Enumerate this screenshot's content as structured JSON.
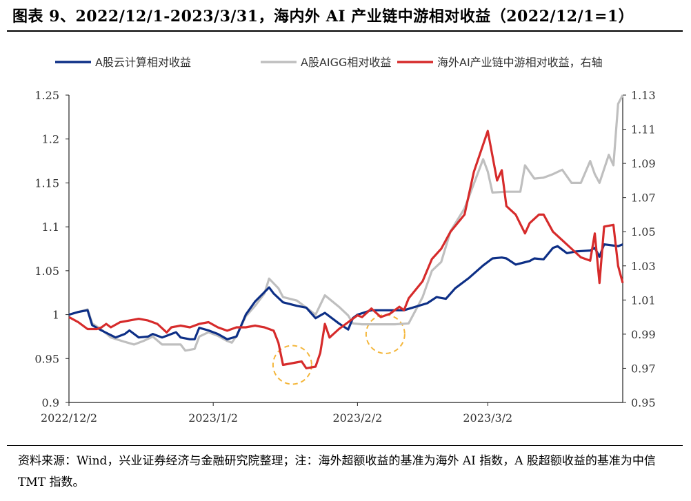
{
  "title": "图表 9、2022/12/1-2023/3/31，海内外 AI 产业链中游相对收益（2022/12/1=1）",
  "footnote": "资料来源：Wind，兴业证券经济与金融研究院整理；注：海外超额收益的基准为海外 AI 指数，A 股超额收益的基准为中信 TMT 指数。",
  "chart_data": {
    "type": "line",
    "x_tick_labels": [
      "2022/12/2",
      "2023/1/2",
      "2023/2/2",
      "2023/3/2"
    ],
    "x_ticks": [
      "2022-12-02",
      "2023-01-02",
      "2023-02-02",
      "2023-03-02"
    ],
    "x_range": [
      "2022-12-02",
      "2023-03-31"
    ],
    "left_axis": {
      "ylim": [
        0.9,
        1.25
      ],
      "ticks": [
        0.9,
        0.95,
        1,
        1.05,
        1.1,
        1.15,
        1.2,
        1.25
      ],
      "tick_labels": [
        "0.9",
        "0.95",
        "1",
        "1.05",
        "1.1",
        "1.15",
        "1.2",
        "1.25"
      ]
    },
    "right_axis": {
      "ylim": [
        0.95,
        1.13
      ],
      "ticks": [
        0.95,
        0.97,
        0.99,
        1.01,
        1.03,
        1.05,
        1.07,
        1.09,
        1.11,
        1.13
      ],
      "tick_labels": [
        "0.95",
        "0.97",
        "0.99",
        "1.01",
        "1.03",
        "1.05",
        "1.07",
        "1.09",
        "1.11",
        "1.13"
      ]
    },
    "series": [
      {
        "name": "A股云计算相对收益",
        "color": "#0d2f86",
        "axis": "left",
        "points": [
          [
            "2022-12-02",
            1.0
          ],
          [
            "2022-12-04",
            1.003
          ],
          [
            "2022-12-06",
            1.005
          ],
          [
            "2022-12-07",
            0.988
          ],
          [
            "2022-12-09",
            0.982
          ],
          [
            "2022-12-12",
            0.974
          ],
          [
            "2022-12-14",
            0.978
          ],
          [
            "2022-12-15",
            0.982
          ],
          [
            "2022-12-17",
            0.974
          ],
          [
            "2022-12-19",
            0.975
          ],
          [
            "2022-12-20",
            0.978
          ],
          [
            "2022-12-22",
            0.974
          ],
          [
            "2022-12-23",
            0.976
          ],
          [
            "2022-12-25",
            0.98
          ],
          [
            "2022-12-26",
            0.974
          ],
          [
            "2022-12-28",
            0.972
          ],
          [
            "2022-12-29",
            0.972
          ],
          [
            "2022-12-30",
            0.985
          ],
          [
            "2023-01-01",
            0.982
          ],
          [
            "2023-01-03",
            0.978
          ],
          [
            "2023-01-05",
            0.972
          ],
          [
            "2023-01-07",
            0.975
          ],
          [
            "2023-01-09",
            1.0
          ],
          [
            "2023-01-11",
            1.015
          ],
          [
            "2023-01-14",
            1.031
          ],
          [
            "2023-01-15",
            1.024
          ],
          [
            "2023-01-17",
            1.014
          ],
          [
            "2023-01-20",
            1.01
          ],
          [
            "2023-01-22",
            1.008
          ],
          [
            "2023-01-24",
            0.996
          ],
          [
            "2023-01-26",
            1.002
          ],
          [
            "2023-01-29",
            0.99
          ],
          [
            "2023-01-31",
            0.983
          ],
          [
            "2023-02-01",
            0.996
          ],
          [
            "2023-02-02",
            1.0
          ],
          [
            "2023-02-05",
            1.005
          ],
          [
            "2023-02-08",
            1.005
          ],
          [
            "2023-02-12",
            1.005
          ],
          [
            "2023-02-17",
            1.013
          ],
          [
            "2023-02-19",
            1.02
          ],
          [
            "2023-02-21",
            1.018
          ],
          [
            "2023-02-23",
            1.03
          ],
          [
            "2023-02-26",
            1.042
          ],
          [
            "2023-03-01",
            1.056
          ],
          [
            "2023-03-03",
            1.064
          ],
          [
            "2023-03-05",
            1.065
          ],
          [
            "2023-03-06",
            1.064
          ],
          [
            "2023-03-08",
            1.057
          ],
          [
            "2023-03-11",
            1.061
          ],
          [
            "2023-03-12",
            1.064
          ],
          [
            "2023-03-14",
            1.063
          ],
          [
            "2023-03-16",
            1.076
          ],
          [
            "2023-03-17",
            1.078
          ],
          [
            "2023-03-19",
            1.07
          ],
          [
            "2023-03-21",
            1.072
          ],
          [
            "2023-03-24",
            1.073
          ],
          [
            "2023-03-25",
            1.076
          ],
          [
            "2023-03-26",
            1.066
          ],
          [
            "2023-03-27",
            1.08
          ],
          [
            "2023-03-30",
            1.078
          ],
          [
            "2023-03-31",
            1.08
          ]
        ]
      },
      {
        "name": "A股AIGG相对收益",
        "color": "#bfbfbf",
        "axis": "left",
        "points": [
          [
            "2022-12-02",
            1.0
          ],
          [
            "2022-12-04",
            1.003
          ],
          [
            "2022-12-06",
            1.006
          ],
          [
            "2022-12-07",
            0.99
          ],
          [
            "2022-12-09",
            0.983
          ],
          [
            "2022-12-11",
            0.974
          ],
          [
            "2022-12-14",
            0.969
          ],
          [
            "2022-12-16",
            0.966
          ],
          [
            "2022-12-18",
            0.97
          ],
          [
            "2022-12-20",
            0.975
          ],
          [
            "2022-12-22",
            0.966
          ],
          [
            "2022-12-24",
            0.966
          ],
          [
            "2022-12-26",
            0.966
          ],
          [
            "2022-12-27",
            0.959
          ],
          [
            "2022-12-29",
            0.961
          ],
          [
            "2022-12-30",
            0.975
          ],
          [
            "2023-01-01",
            0.98
          ],
          [
            "2023-01-03",
            0.976
          ],
          [
            "2023-01-05",
            0.97
          ],
          [
            "2023-01-06",
            0.968
          ],
          [
            "2023-01-07",
            0.976
          ],
          [
            "2023-01-09",
            0.998
          ],
          [
            "2023-01-11",
            1.01
          ],
          [
            "2023-01-13",
            1.024
          ],
          [
            "2023-01-14",
            1.041
          ],
          [
            "2023-01-16",
            1.03
          ],
          [
            "2023-01-17",
            1.02
          ],
          [
            "2023-01-20",
            1.016
          ],
          [
            "2023-01-22",
            1.008
          ],
          [
            "2023-01-24",
            1.0
          ],
          [
            "2023-01-26",
            1.022
          ],
          [
            "2023-01-29",
            1.009
          ],
          [
            "2023-01-31",
            0.999
          ],
          [
            "2023-02-01",
            0.99
          ],
          [
            "2023-02-03",
            0.989
          ],
          [
            "2023-02-06",
            0.989
          ],
          [
            "2023-02-10",
            0.989
          ],
          [
            "2023-02-13",
            0.99
          ],
          [
            "2023-02-16",
            1.02
          ],
          [
            "2023-02-18",
            1.05
          ],
          [
            "2023-02-20",
            1.06
          ],
          [
            "2023-02-22",
            1.095
          ],
          [
            "2023-02-25",
            1.121
          ],
          [
            "2023-03-01",
            1.177
          ],
          [
            "2023-03-02",
            1.163
          ],
          [
            "2023-03-03",
            1.139
          ],
          [
            "2023-03-06",
            1.14
          ],
          [
            "2023-03-09",
            1.14
          ],
          [
            "2023-03-10",
            1.17
          ],
          [
            "2023-03-12",
            1.155
          ],
          [
            "2023-03-14",
            1.156
          ],
          [
            "2023-03-16",
            1.16
          ],
          [
            "2023-03-18",
            1.165
          ],
          [
            "2023-03-20",
            1.15
          ],
          [
            "2023-03-22",
            1.15
          ],
          [
            "2023-03-24",
            1.175
          ],
          [
            "2023-03-25",
            1.16
          ],
          [
            "2023-03-26",
            1.15
          ],
          [
            "2023-03-28",
            1.182
          ],
          [
            "2023-03-29",
            1.17
          ],
          [
            "2023-03-30",
            1.24
          ],
          [
            "2023-03-31",
            1.25
          ]
        ]
      },
      {
        "name": "海外AI产业链中游相对收益，右轴",
        "color": "#d62b2b",
        "axis": "right",
        "points": [
          [
            "2022-12-02",
            1.0
          ],
          [
            "2022-12-04",
            0.997
          ],
          [
            "2022-12-06",
            0.993
          ],
          [
            "2022-12-08",
            0.993
          ],
          [
            "2022-12-09",
            0.994
          ],
          [
            "2022-12-10",
            0.996
          ],
          [
            "2022-12-11",
            0.994
          ],
          [
            "2022-12-13",
            0.997
          ],
          [
            "2022-12-15",
            0.998
          ],
          [
            "2022-12-17",
            0.999
          ],
          [
            "2022-12-19",
            0.998
          ],
          [
            "2022-12-21",
            0.996
          ],
          [
            "2022-12-23",
            0.991
          ],
          [
            "2022-12-24",
            0.994
          ],
          [
            "2022-12-26",
            0.995
          ],
          [
            "2022-12-28",
            0.994
          ],
          [
            "2022-12-30",
            0.996
          ],
          [
            "2023-01-01",
            0.997
          ],
          [
            "2023-01-03",
            0.994
          ],
          [
            "2023-01-05",
            0.992
          ],
          [
            "2023-01-07",
            0.994
          ],
          [
            "2023-01-09",
            0.994
          ],
          [
            "2023-01-11",
            0.995
          ],
          [
            "2023-01-13",
            0.994
          ],
          [
            "2023-01-15",
            0.992
          ],
          [
            "2023-01-16",
            0.985
          ],
          [
            "2023-01-17",
            0.972
          ],
          [
            "2023-01-19",
            0.973
          ],
          [
            "2023-01-21",
            0.974
          ],
          [
            "2023-01-22",
            0.97
          ],
          [
            "2023-01-24",
            0.971
          ],
          [
            "2023-01-25",
            0.979
          ],
          [
            "2023-01-26",
            0.996
          ],
          [
            "2023-01-27",
            0.988
          ],
          [
            "2023-01-29",
            0.993
          ],
          [
            "2023-01-31",
            0.997
          ],
          [
            "2023-02-02",
            1.001
          ],
          [
            "2023-02-03",
            1.0
          ],
          [
            "2023-02-05",
            1.005
          ],
          [
            "2023-02-07",
            1.0
          ],
          [
            "2023-02-09",
            1.002
          ],
          [
            "2023-02-11",
            1.006
          ],
          [
            "2023-02-12",
            1.004
          ],
          [
            "2023-02-13",
            1.011
          ],
          [
            "2023-02-16",
            1.021
          ],
          [
            "2023-02-18",
            1.034
          ],
          [
            "2023-02-20",
            1.04
          ],
          [
            "2023-02-22",
            1.05
          ],
          [
            "2023-02-25",
            1.06
          ],
          [
            "2023-02-27",
            1.085
          ],
          [
            "2023-03-02",
            1.109
          ],
          [
            "2023-03-04",
            1.08
          ],
          [
            "2023-03-05",
            1.086
          ],
          [
            "2023-03-06",
            1.065
          ],
          [
            "2023-03-08",
            1.06
          ],
          [
            "2023-03-10",
            1.049
          ],
          [
            "2023-03-11",
            1.055
          ],
          [
            "2023-03-13",
            1.06
          ],
          [
            "2023-03-14",
            1.06
          ],
          [
            "2023-03-16",
            1.05
          ],
          [
            "2023-03-18",
            1.045
          ],
          [
            "2023-03-20",
            1.04
          ],
          [
            "2023-03-22",
            1.035
          ],
          [
            "2023-03-24",
            1.033
          ],
          [
            "2023-03-25",
            1.049
          ],
          [
            "2023-03-26",
            1.02
          ],
          [
            "2023-03-27",
            1.053
          ],
          [
            "2023-03-29",
            1.054
          ],
          [
            "2023-03-30",
            1.03
          ],
          [
            "2023-03-31",
            1.02
          ]
        ]
      }
    ],
    "highlight_circles": [
      {
        "x": "2023-01-19",
        "y_right": 0.972,
        "color": "#f4b63a"
      },
      {
        "x": "2023-02-08",
        "y_right": 0.99,
        "color": "#f4b63a"
      }
    ],
    "legend_position": "top",
    "grid": false
  }
}
